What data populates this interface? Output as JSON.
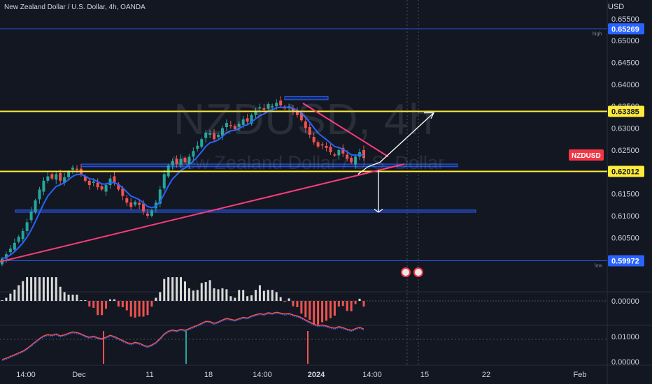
{
  "header": {
    "title": "New Zealand Dollar / U.S. Dollar, 4h, OANDA",
    "currency": "USD"
  },
  "watermark": {
    "symbol": "NZDUSD, 4h",
    "name": "New Zealand Dollar / U.S. Dollar"
  },
  "colors": {
    "background": "#131722",
    "grid": "#2a2e39",
    "text": "#d1d4dc",
    "bull": "#26a69a",
    "bear": "#ef5350",
    "ema": "#2962ff",
    "level": "#ffeb3b",
    "trendline": "#ff3b7a",
    "zone": "#2962ff",
    "hilo_line": "#2962ff",
    "symbol_tag": "#f23645"
  },
  "chart_data": {
    "type": "candlestick",
    "symbol": "NZDUSD",
    "interval": "4h",
    "price_axis": {
      "ticks": [
        "0.65500",
        "0.65000",
        "0.64500",
        "0.64000",
        "0.63500",
        "0.63000",
        "0.62500",
        "0.62000",
        "0.61500",
        "0.61000",
        "0.60500",
        "0.60000"
      ],
      "ylim": [
        0.5982,
        0.658
      ]
    },
    "time_axis": {
      "labels": [
        "14:00",
        "Dec",
        "11",
        "18",
        "14:00",
        "2024",
        "14:00",
        "15",
        "22",
        "Feb"
      ]
    },
    "price_labels": {
      "high": {
        "label": "high",
        "value": "0.65269"
      },
      "low": {
        "label": "low",
        "value": "0.59972"
      },
      "level_upper": "0.63385",
      "level_lower": "0.62012",
      "symbol_tag": "NZDUSD"
    },
    "levels": [
      0.63385,
      0.62012
    ],
    "zones": [
      {
        "low": 0.6212,
        "high": 0.6218
      },
      {
        "low": 0.6108,
        "high": 0.6113
      },
      {
        "low": 0.6365,
        "high": 0.6372
      }
    ],
    "trendlines": [
      {
        "from": [
          "start",
          0.5995
        ],
        "to": [
          "14:00 after 2024",
          0.6218
        ]
      },
      {
        "from": [
          "2024",
          0.6355
        ],
        "to": [
          "14:00 after 2024",
          0.6235
        ]
      }
    ],
    "projections": [
      "up toward 0.6338 and beyond",
      "down toward 0.6110"
    ],
    "price_path": [
      0.6002,
      0.6012,
      0.6025,
      0.6038,
      0.6052,
      0.6065,
      0.6085,
      0.611,
      0.6135,
      0.616,
      0.618,
      0.619,
      0.6185,
      0.6195,
      0.618,
      0.6188,
      0.62,
      0.621,
      0.6205,
      0.6195,
      0.618,
      0.617,
      0.6178,
      0.6165,
      0.616,
      0.617,
      0.6185,
      0.6175,
      0.616,
      0.6145,
      0.613,
      0.612,
      0.6132,
      0.6125,
      0.611,
      0.61,
      0.6112,
      0.613,
      0.616,
      0.6195,
      0.6215,
      0.6225,
      0.6218,
      0.623,
      0.6222,
      0.6235,
      0.6248,
      0.626,
      0.6275,
      0.629,
      0.6288,
      0.6275,
      0.6285,
      0.63,
      0.6312,
      0.6305,
      0.6298,
      0.631,
      0.632,
      0.6315,
      0.633,
      0.634,
      0.6348,
      0.6342,
      0.6355,
      0.635,
      0.6358,
      0.6352,
      0.6345,
      0.635,
      0.6338,
      0.633,
      0.6318,
      0.63,
      0.6285,
      0.6268,
      0.6258,
      0.6262,
      0.6255,
      0.6245,
      0.6238,
      0.625,
      0.6242,
      0.623,
      0.6222,
      0.6235,
      0.6245,
      0.6232
    ],
    "volume_axis": {
      "ticks": [
        "0.00000"
      ]
    },
    "oscillator_axis": {
      "ticks": [
        "0.01000",
        "0.00000"
      ]
    }
  }
}
